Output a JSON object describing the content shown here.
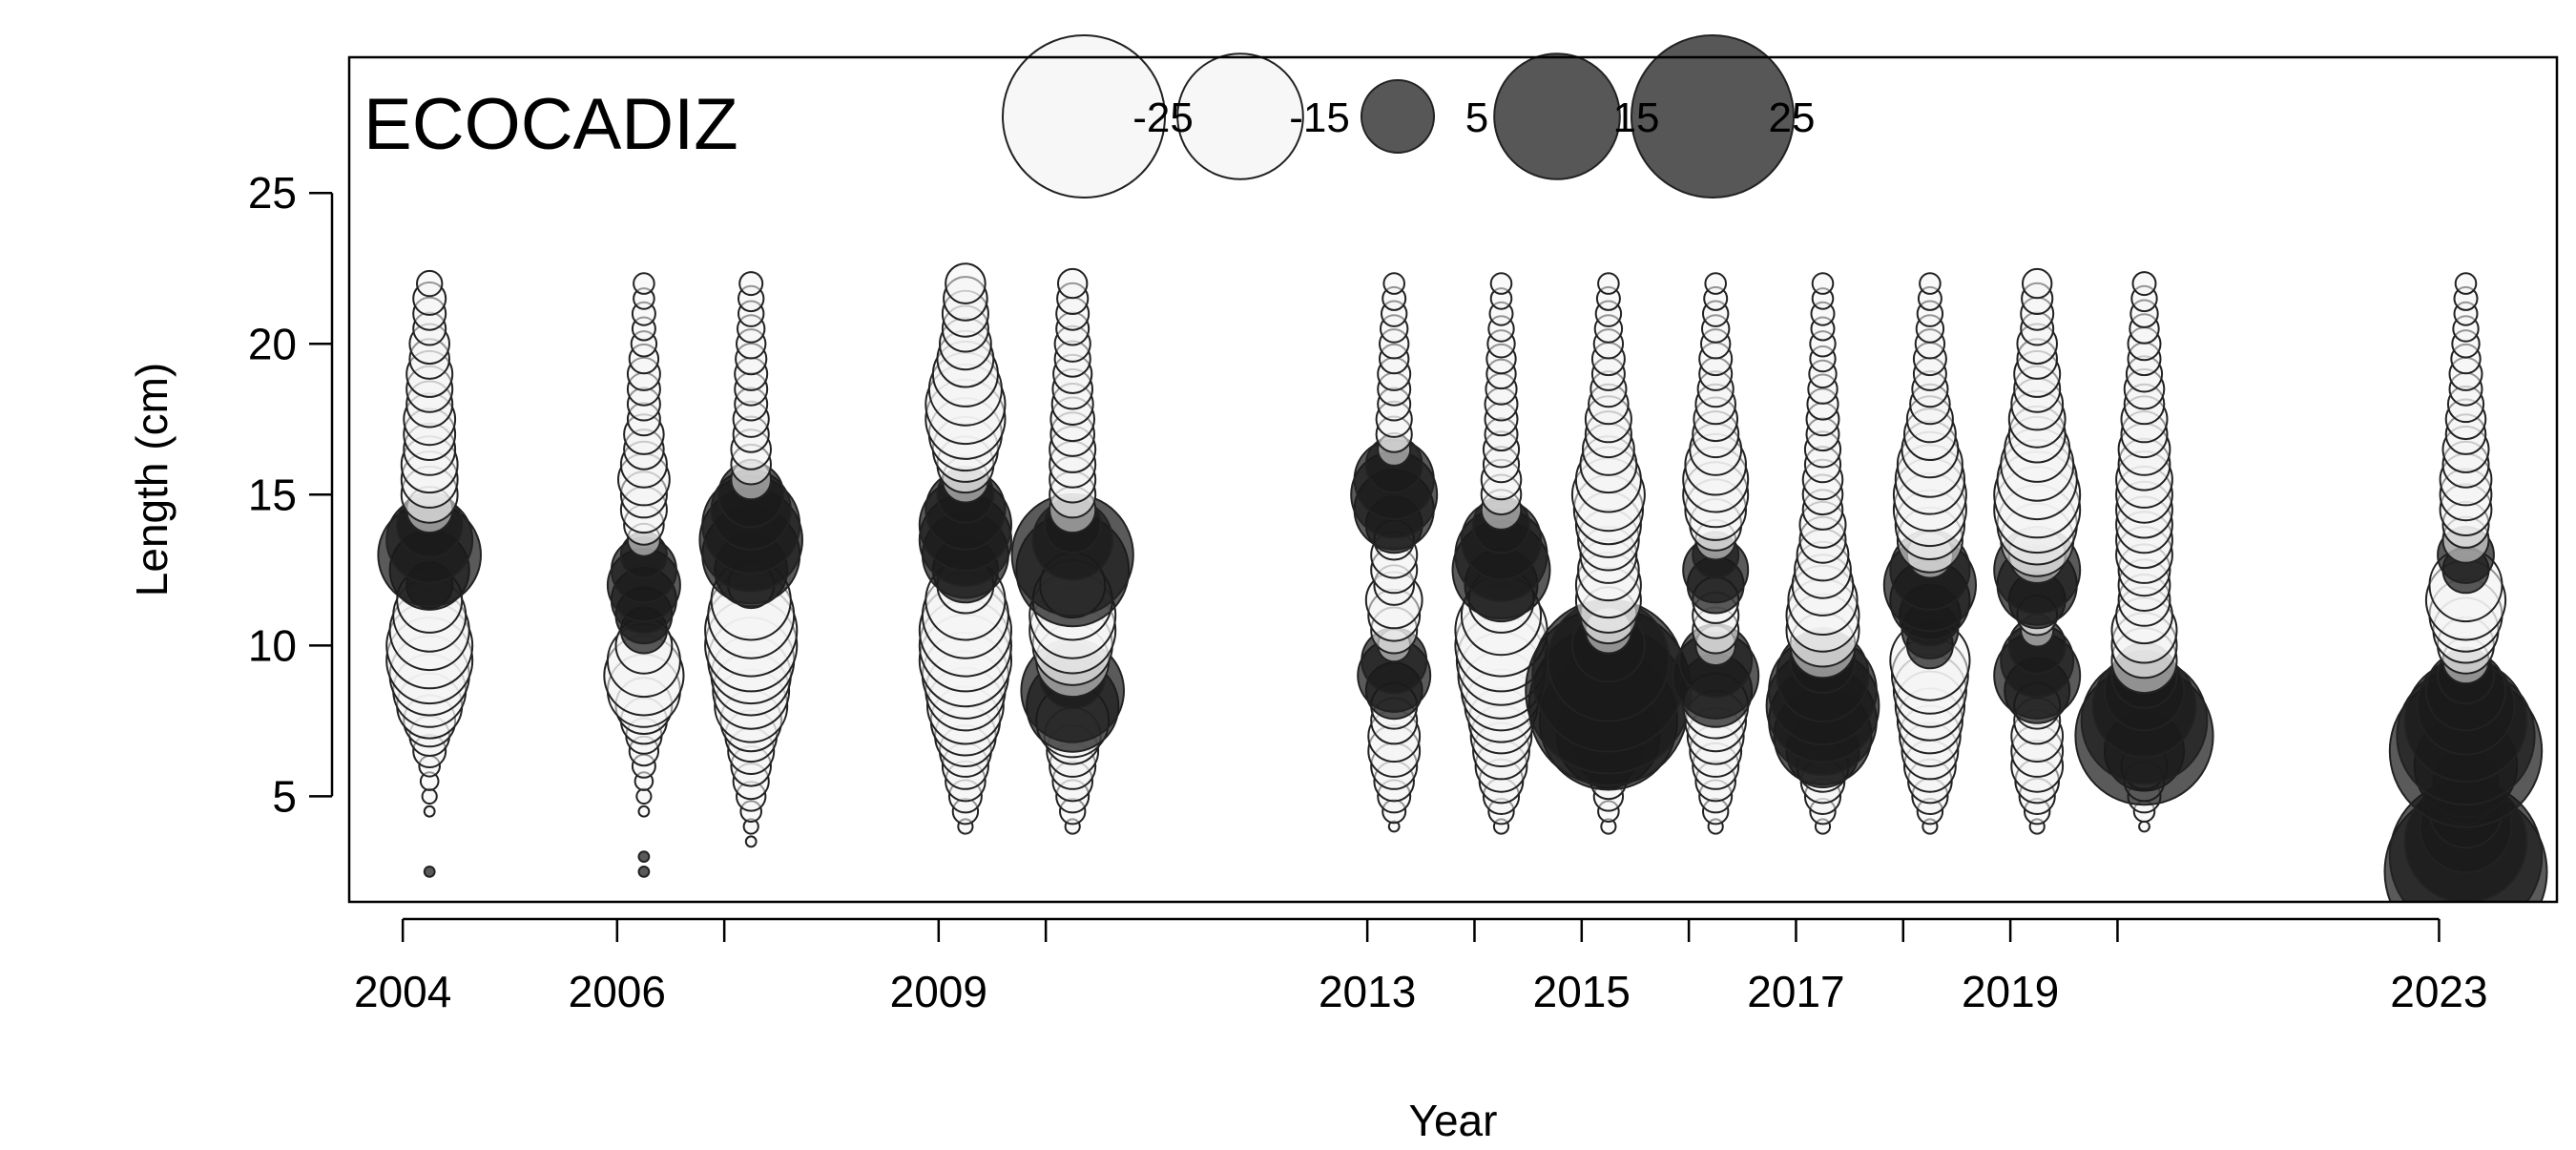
{
  "chart_data": {
    "type": "scatter",
    "subtype": "bubble-residuals",
    "title": "ECOCADIZ",
    "xlabel": "Year",
    "ylabel": "Length (cm)",
    "xlim": [
      2003.5,
      2024.1
    ],
    "ylim": [
      1.5,
      29.5
    ],
    "x_tick_marks": [
      2004,
      2006,
      2007,
      2009,
      2010,
      2013,
      2014,
      2015,
      2016,
      2017,
      2018,
      2019,
      2020,
      2023
    ],
    "x_tick_labels": [
      {
        "value": 2004,
        "label": "2004"
      },
      {
        "value": 2006,
        "label": "2006"
      },
      {
        "value": 2009,
        "label": "2009"
      },
      {
        "value": 2013,
        "label": "2013"
      },
      {
        "value": 2015,
        "label": "2015"
      },
      {
        "value": 2017,
        "label": "2017"
      },
      {
        "value": 2019,
        "label": "2019"
      },
      {
        "value": 2023,
        "label": "2023"
      }
    ],
    "y_ticks": [
      {
        "value": 5,
        "label": "5"
      },
      {
        "value": 10,
        "label": "10"
      },
      {
        "value": 15,
        "label": "15"
      },
      {
        "value": 20,
        "label": "20"
      },
      {
        "value": 25,
        "label": "25"
      }
    ],
    "legend": {
      "placement": "top-center",
      "entries": [
        {
          "value": -25,
          "label": "-25"
        },
        {
          "value": -15,
          "label": "-15"
        },
        {
          "value": 5,
          "label": "5"
        },
        {
          "value": 15,
          "label": "15"
        },
        {
          "value": 25,
          "label": "25"
        }
      ]
    },
    "colors": {
      "positive": "#1a1a1a",
      "negative": "#f4f4f4",
      "stroke": "#222222"
    },
    "lengths": [
      2.5,
      3,
      3.5,
      4,
      4.5,
      5,
      5.5,
      6,
      6.5,
      7,
      7.5,
      8,
      8.5,
      9,
      9.5,
      10,
      10.5,
      11,
      11.5,
      12,
      12.5,
      13,
      13.5,
      14,
      14.5,
      15,
      15.5,
      16,
      16.5,
      17,
      17.5,
      18,
      18.5,
      19,
      19.5,
      20,
      20.5,
      21,
      21.5,
      22
    ],
    "series": [
      {
        "year": 2004.25,
        "residuals": [
          0.1,
          0,
          0,
          0,
          -0.1,
          -0.2,
          -0.3,
          -0.4,
          -1,
          -1.5,
          -2.5,
          -4,
          -5,
          -6,
          -7,
          -7,
          -6,
          -5,
          -4,
          2,
          6,
          10,
          7,
          4,
          -2,
          -3,
          -3,
          -3,
          -2.5,
          -2.5,
          -2.5,
          -2,
          -2,
          -2,
          -1.5,
          -1.5,
          -1,
          -1,
          -1,
          -0.6
        ]
      },
      {
        "year": 2006.25,
        "residuals": [
          0.1,
          0.1,
          0,
          0,
          -0.1,
          -0.2,
          -0.3,
          -0.5,
          -0.8,
          -1.2,
          -2,
          -3,
          -5,
          -6,
          -5,
          -3,
          2,
          3,
          4,
          5,
          4,
          2,
          -1,
          -1.5,
          -2,
          -2,
          -2.5,
          -2,
          -1.5,
          -1.5,
          -1,
          -1,
          -1,
          -1,
          -0.8,
          -0.6,
          -0.5,
          -0.5,
          -0.4,
          -0.4
        ]
      },
      {
        "year": 2007.25,
        "residuals": [
          0,
          0,
          -0.1,
          -0.2,
          -0.4,
          -0.8,
          -1.2,
          -1.5,
          -2,
          -2.5,
          -3.5,
          -5,
          -5.5,
          -6,
          -7,
          -8,
          -8,
          -7,
          -6,
          -2,
          5,
          9,
          10,
          9,
          6,
          4,
          -1.5,
          -1.5,
          -1.5,
          -1.2,
          -1.2,
          -1,
          -1,
          -1,
          -0.9,
          -0.8,
          -0.7,
          -0.6,
          -0.6,
          -0.5
        ]
      },
      {
        "year": 2009.25,
        "residuals": [
          0,
          0,
          0,
          -0.2,
          -0.6,
          -1,
          -1.5,
          -2,
          -2.5,
          -3.5,
          -4.5,
          -5.5,
          -6,
          -7,
          -8,
          -8,
          -8,
          -7,
          -6,
          -3,
          4,
          7,
          8,
          8,
          6,
          3,
          -2,
          -3,
          -4,
          -5,
          -6,
          -6,
          -5,
          -4,
          -3,
          -2.5,
          -2,
          -2,
          -1.8,
          -1.5
        ]
      },
      {
        "year": 2010.25,
        "residuals": [
          0,
          0,
          0,
          -0.2,
          -0.6,
          -1,
          -1.5,
          -2,
          -2.5,
          -3,
          -5,
          8,
          10,
          4,
          -5,
          -6,
          -7,
          -7,
          -6,
          -4,
          12,
          14,
          6,
          3,
          -2,
          -2,
          -2,
          -2,
          -2,
          -1.8,
          -1.8,
          -1.6,
          -1.5,
          -1.4,
          -1.2,
          -1.2,
          -1,
          -1,
          -0.9,
          -0.8
        ]
      },
      {
        "year": 2013.25,
        "residuals": [
          0,
          0,
          0,
          -0.1,
          -0.5,
          -1,
          -1.5,
          -2,
          -2.5,
          -2.5,
          -2,
          -2,
          3,
          5,
          4,
          -1,
          -2,
          -2.5,
          -3,
          -1.5,
          -2,
          -2,
          -1.5,
          3,
          6,
          7,
          6,
          3,
          -1,
          -1.2,
          -1.2,
          -1,
          -1,
          -1,
          -0.8,
          -0.8,
          -0.7,
          -0.6,
          -0.5,
          -0.4
        ]
      },
      {
        "year": 2014.25,
        "residuals": [
          0,
          0,
          0,
          -0.2,
          -0.6,
          -1.2,
          -1.8,
          -2.5,
          -3,
          -3.5,
          -4,
          -5,
          -6,
          -7,
          -7.5,
          -8,
          -8,
          -6,
          -4,
          5,
          9,
          8,
          6,
          3,
          -1.5,
          -1.5,
          -1.5,
          -1.2,
          -1.2,
          -1,
          -1,
          -1,
          -0.9,
          -0.8,
          -0.8,
          -0.7,
          -0.6,
          -0.5,
          -0.4,
          -0.4
        ]
      },
      {
        "year": 2015.25,
        "residuals": [
          0,
          0,
          0,
          -0.2,
          -0.4,
          -0.8,
          -1.2,
          -2,
          4,
          10,
          18,
          24,
          26,
          22,
          14,
          5,
          -2,
          -3,
          -4,
          -4,
          -3.5,
          -3,
          -3.5,
          -4,
          -4.5,
          -5,
          -4,
          -3,
          -2.5,
          -2,
          -2,
          -1.5,
          -1.2,
          -1,
          -1,
          -0.8,
          -0.7,
          -0.6,
          -0.5,
          -0.4
        ]
      },
      {
        "year": 2016.25,
        "residuals": [
          0,
          0,
          0,
          -0.2,
          -0.6,
          -1,
          -1.5,
          -2,
          -2.5,
          -3,
          -3.5,
          -4,
          5,
          7,
          5,
          -1.5,
          -2,
          -2,
          -2,
          3,
          4,
          2,
          -1.5,
          -2.5,
          -3.5,
          -4,
          -4,
          -3.5,
          -2.5,
          -2,
          -1.8,
          -1.5,
          -1.2,
          -1,
          -1,
          -0.8,
          -0.7,
          -0.6,
          -0.5,
          -0.4
        ]
      },
      {
        "year": 2017.25,
        "residuals": [
          0,
          0,
          0,
          -0.2,
          -0.6,
          -1.2,
          -1.8,
          -2.5,
          5,
          9,
          11,
          12,
          11,
          8,
          4,
          -4,
          -5,
          -5,
          -4.5,
          -3.5,
          -3,
          -2.5,
          -2,
          -2,
          -1.5,
          -1.5,
          -1.5,
          -1.2,
          -1.2,
          -1,
          -1,
          -0.9,
          -0.8,
          -0.7,
          -0.6,
          -0.6,
          -0.5,
          -0.5,
          -0.4,
          -0.4
        ]
      },
      {
        "year": 2018.25,
        "residuals": [
          0,
          0,
          0,
          -0.2,
          -0.6,
          -1.2,
          -1.8,
          -2.5,
          -3,
          -3.5,
          -4,
          -4.5,
          -5,
          -5.5,
          -6,
          2,
          3,
          3.5,
          6,
          8,
          6,
          -2,
          -4,
          -4.5,
          -5,
          -5,
          -4.5,
          -4,
          -3,
          -2.5,
          -2,
          -1.5,
          -1.2,
          -1,
          -1,
          -0.8,
          -0.7,
          -0.6,
          -0.5,
          -0.4
        ]
      },
      {
        "year": 2019.25,
        "residuals": [
          0,
          0,
          0,
          -0.2,
          -0.6,
          -1.2,
          -1.8,
          -2.5,
          -2.5,
          -2.5,
          -2,
          -2,
          4,
          7,
          5,
          3,
          -1,
          -1.5,
          3,
          6,
          7,
          -3,
          -5,
          -6,
          -7,
          -7,
          -6,
          -5,
          -4,
          -3,
          -3,
          -2.5,
          -2,
          -2,
          -1.5,
          -1.5,
          -1,
          -1,
          -0.9,
          -0.8
        ]
      },
      {
        "year": 2020.25,
        "residuals": [
          0,
          0,
          0,
          -0.1,
          -0.4,
          -1,
          -1.5,
          -2,
          6,
          18,
          15,
          10,
          6,
          4,
          -4,
          -4,
          -4,
          -3,
          -2.5,
          -2.5,
          -2.5,
          -3,
          -3,
          -3,
          -3,
          -3,
          -3,
          -2.5,
          -2.5,
          -2,
          -2,
          -1.5,
          -1.5,
          -1.2,
          -1,
          -1,
          -0.8,
          -0.7,
          -0.6,
          -0.5
        ]
      },
      {
        "year": 2023.25,
        "residuals": [
          25,
          22,
          14,
          8,
          5,
          3,
          4,
          10,
          22,
          18,
          14,
          9,
          6,
          3,
          -2,
          -3,
          -4,
          -5,
          -6,
          -5,
          2,
          3,
          -2,
          -2,
          -2.5,
          -2.5,
          -2.5,
          -2,
          -2,
          -1.5,
          -1.5,
          -1.2,
          -1,
          -1,
          -0.8,
          -0.7,
          -0.6,
          -0.5,
          -0.5,
          -0.4
        ]
      }
    ]
  }
}
